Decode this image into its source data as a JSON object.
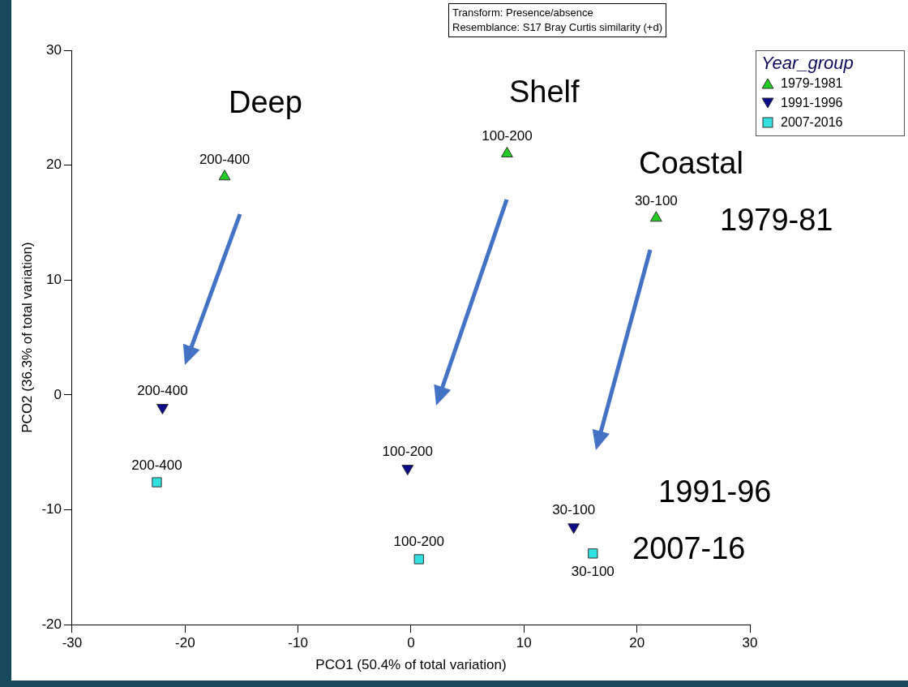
{
  "chart_data": {
    "type": "scatter",
    "xlabel": "PCO1 (50.4% of total variation)",
    "ylabel": "PCO2 (36.3% of total variation)",
    "legend_title": "Year_group",
    "legend": "top right",
    "xlim": [
      -30,
      30
    ],
    "xticks": [
      -30,
      -20,
      -10,
      0,
      10,
      20,
      30
    ],
    "ylim": [
      -20,
      30
    ],
    "yticks": [
      -20,
      -10,
      0,
      10,
      20,
      30
    ],
    "grid": false,
    "series": [
      {
        "name": "1979-1981",
        "color": "#22cc22",
        "marker": "triangle",
        "x": [
          -16.5,
          8.5,
          21.7
        ],
        "values": [
          19.0,
          21.0,
          15.4
        ]
      },
      {
        "name": "1991-1996",
        "color": "#0a0a8a",
        "marker": "triangle-down",
        "x": [
          -22.0,
          -0.3,
          14.4
        ],
        "values": [
          -1.1,
          -6.4,
          -11.5
        ]
      },
      {
        "name": "2007-2016",
        "color": "#33e0e0",
        "marker": "square",
        "x": [
          -22.5,
          0.7,
          16.1
        ],
        "values": [
          -7.6,
          -14.3,
          -13.8
        ]
      }
    ],
    "annotations": [
      "Transform: Presence/absence",
      "Resemblance: S17 Bray Curtis similarity (+d)",
      "Deep",
      "Shelf",
      "Coastal",
      "1979-81",
      "1991-96",
      "2007-16",
      {
        "text": "200-400",
        "x": -16.5,
        "y": 19.0
      },
      {
        "text": "100-200",
        "x": 8.5,
        "y": 21.0
      },
      {
        "text": "30-100",
        "x": 21.7,
        "y": 15.4
      },
      {
        "text": "200-400",
        "x": -22.0,
        "y": -1.1
      },
      {
        "text": "100-200",
        "x": -0.3,
        "y": -6.4
      },
      {
        "text": "30-100",
        "x": 14.4,
        "y": -11.5
      },
      {
        "text": "200-400",
        "x": -22.5,
        "y": -7.6
      },
      {
        "text": "100-200",
        "x": 0.7,
        "y": -14.3
      },
      {
        "text": "30-100",
        "x": 16.1,
        "y": -13.8
      }
    ]
  }
}
